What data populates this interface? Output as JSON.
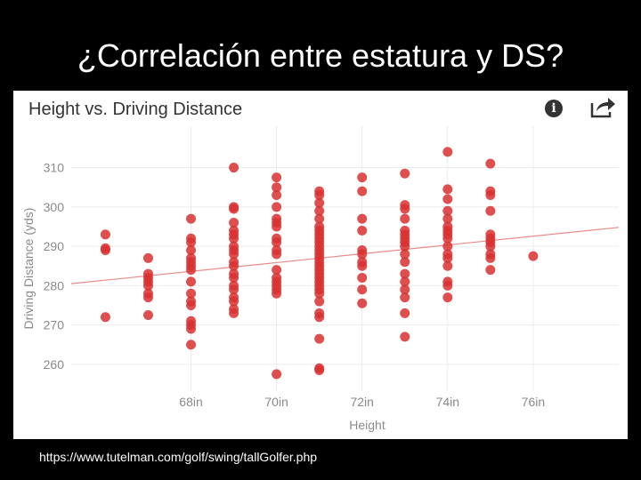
{
  "slide": {
    "title": "¿Correlación entre estatura y DS?",
    "source_url": "https://www.tutelman.com/golf/swing/tallGolfer.php"
  },
  "chart_header": {
    "icons": [
      "info-icon",
      "share-icon"
    ]
  },
  "colors": {
    "point": "#d93030",
    "trend": "#e88a8a",
    "grid": "#ececec",
    "axis_text": "#8a8a8a"
  },
  "chart_data": {
    "type": "scatter",
    "title": "Height vs. Driving Distance",
    "xlabel": "Height",
    "ylabel": "Driving Distance (yds)",
    "xlim": [
      65.2,
      78.0
    ],
    "ylim": [
      255,
      316
    ],
    "x_ticks": [
      68,
      70,
      72,
      74,
      76
    ],
    "x_tick_labels": [
      "68in",
      "70in",
      "72in",
      "74in",
      "76in"
    ],
    "y_ticks": [
      260,
      270,
      280,
      290,
      300,
      310
    ],
    "y_tick_labels": [
      "260",
      "270",
      "280",
      "290",
      "300",
      "310"
    ],
    "grid": true,
    "trendline": {
      "x": [
        65.2,
        78.0
      ],
      "y": [
        280.5,
        294.8
      ]
    },
    "points": [
      {
        "x": 66,
        "y": 293
      },
      {
        "x": 66,
        "y": 289.5
      },
      {
        "x": 66,
        "y": 289
      },
      {
        "x": 66,
        "y": 272
      },
      {
        "x": 67,
        "y": 287
      },
      {
        "x": 67,
        "y": 283
      },
      {
        "x": 67,
        "y": 282
      },
      {
        "x": 67,
        "y": 281
      },
      {
        "x": 67,
        "y": 280
      },
      {
        "x": 67,
        "y": 278
      },
      {
        "x": 67,
        "y": 277
      },
      {
        "x": 67,
        "y": 272.5
      },
      {
        "x": 68,
        "y": 297
      },
      {
        "x": 68,
        "y": 292
      },
      {
        "x": 68,
        "y": 291
      },
      {
        "x": 68,
        "y": 289
      },
      {
        "x": 68,
        "y": 287
      },
      {
        "x": 68,
        "y": 286
      },
      {
        "x": 68,
        "y": 285
      },
      {
        "x": 68,
        "y": 284
      },
      {
        "x": 68,
        "y": 281
      },
      {
        "x": 68,
        "y": 278
      },
      {
        "x": 68,
        "y": 276
      },
      {
        "x": 68,
        "y": 275
      },
      {
        "x": 68,
        "y": 271
      },
      {
        "x": 68,
        "y": 270
      },
      {
        "x": 68,
        "y": 269
      },
      {
        "x": 68,
        "y": 265
      },
      {
        "x": 69,
        "y": 310
      },
      {
        "x": 69,
        "y": 300
      },
      {
        "x": 69,
        "y": 299.5
      },
      {
        "x": 69,
        "y": 296
      },
      {
        "x": 69,
        "y": 294
      },
      {
        "x": 69,
        "y": 293
      },
      {
        "x": 69,
        "y": 292
      },
      {
        "x": 69,
        "y": 290
      },
      {
        "x": 69,
        "y": 289
      },
      {
        "x": 69,
        "y": 288
      },
      {
        "x": 69,
        "y": 286
      },
      {
        "x": 69,
        "y": 285
      },
      {
        "x": 69,
        "y": 283
      },
      {
        "x": 69,
        "y": 282
      },
      {
        "x": 69,
        "y": 280
      },
      {
        "x": 69,
        "y": 279
      },
      {
        "x": 69,
        "y": 277
      },
      {
        "x": 69,
        "y": 276
      },
      {
        "x": 69,
        "y": 274
      },
      {
        "x": 69,
        "y": 273
      },
      {
        "x": 70,
        "y": 307.5
      },
      {
        "x": 70,
        "y": 305
      },
      {
        "x": 70,
        "y": 303
      },
      {
        "x": 70,
        "y": 300
      },
      {
        "x": 70,
        "y": 297
      },
      {
        "x": 70,
        "y": 296
      },
      {
        "x": 70,
        "y": 295
      },
      {
        "x": 70,
        "y": 292
      },
      {
        "x": 70,
        "y": 291
      },
      {
        "x": 70,
        "y": 289
      },
      {
        "x": 70,
        "y": 288
      },
      {
        "x": 70,
        "y": 284
      },
      {
        "x": 70,
        "y": 282
      },
      {
        "x": 70,
        "y": 281
      },
      {
        "x": 70,
        "y": 280
      },
      {
        "x": 70,
        "y": 279
      },
      {
        "x": 70,
        "y": 278
      },
      {
        "x": 70,
        "y": 257.5
      },
      {
        "x": 71,
        "y": 304
      },
      {
        "x": 71,
        "y": 303
      },
      {
        "x": 71,
        "y": 301
      },
      {
        "x": 71,
        "y": 299
      },
      {
        "x": 71,
        "y": 297
      },
      {
        "x": 71,
        "y": 295
      },
      {
        "x": 71,
        "y": 294
      },
      {
        "x": 71,
        "y": 293
      },
      {
        "x": 71,
        "y": 292
      },
      {
        "x": 71,
        "y": 291
      },
      {
        "x": 71,
        "y": 290
      },
      {
        "x": 71,
        "y": 289
      },
      {
        "x": 71,
        "y": 288
      },
      {
        "x": 71,
        "y": 287
      },
      {
        "x": 71,
        "y": 286
      },
      {
        "x": 71,
        "y": 285
      },
      {
        "x": 71,
        "y": 284
      },
      {
        "x": 71,
        "y": 283
      },
      {
        "x": 71,
        "y": 282
      },
      {
        "x": 71,
        "y": 281
      },
      {
        "x": 71,
        "y": 280
      },
      {
        "x": 71,
        "y": 279
      },
      {
        "x": 71,
        "y": 278
      },
      {
        "x": 71,
        "y": 276
      },
      {
        "x": 71,
        "y": 273
      },
      {
        "x": 71,
        "y": 272
      },
      {
        "x": 71,
        "y": 266.5
      },
      {
        "x": 71,
        "y": 259
      },
      {
        "x": 71,
        "y": 258.5
      },
      {
        "x": 72,
        "y": 307.5
      },
      {
        "x": 72,
        "y": 304
      },
      {
        "x": 72,
        "y": 297
      },
      {
        "x": 72,
        "y": 294
      },
      {
        "x": 72,
        "y": 289
      },
      {
        "x": 72,
        "y": 288
      },
      {
        "x": 72,
        "y": 286
      },
      {
        "x": 72,
        "y": 285
      },
      {
        "x": 72,
        "y": 282
      },
      {
        "x": 72,
        "y": 279
      },
      {
        "x": 72,
        "y": 275.5
      },
      {
        "x": 73,
        "y": 308.5
      },
      {
        "x": 73,
        "y": 300.5
      },
      {
        "x": 73,
        "y": 299.5
      },
      {
        "x": 73,
        "y": 297
      },
      {
        "x": 73,
        "y": 294
      },
      {
        "x": 73,
        "y": 293
      },
      {
        "x": 73,
        "y": 292
      },
      {
        "x": 73,
        "y": 291
      },
      {
        "x": 73,
        "y": 290
      },
      {
        "x": 73,
        "y": 288
      },
      {
        "x": 73,
        "y": 286
      },
      {
        "x": 73,
        "y": 283
      },
      {
        "x": 73,
        "y": 281
      },
      {
        "x": 73,
        "y": 279
      },
      {
        "x": 73,
        "y": 277
      },
      {
        "x": 73,
        "y": 273
      },
      {
        "x": 73,
        "y": 267
      },
      {
        "x": 74,
        "y": 314
      },
      {
        "x": 74,
        "y": 304.5
      },
      {
        "x": 74,
        "y": 302
      },
      {
        "x": 74,
        "y": 299
      },
      {
        "x": 74,
        "y": 297
      },
      {
        "x": 74,
        "y": 295
      },
      {
        "x": 74,
        "y": 294
      },
      {
        "x": 74,
        "y": 293
      },
      {
        "x": 74,
        "y": 292
      },
      {
        "x": 74,
        "y": 290
      },
      {
        "x": 74,
        "y": 288
      },
      {
        "x": 74,
        "y": 287
      },
      {
        "x": 74,
        "y": 285
      },
      {
        "x": 74,
        "y": 281
      },
      {
        "x": 74,
        "y": 280
      },
      {
        "x": 74,
        "y": 277
      },
      {
        "x": 75,
        "y": 311
      },
      {
        "x": 75,
        "y": 304
      },
      {
        "x": 75,
        "y": 303
      },
      {
        "x": 75,
        "y": 299
      },
      {
        "x": 75,
        "y": 293
      },
      {
        "x": 75,
        "y": 292
      },
      {
        "x": 75,
        "y": 291
      },
      {
        "x": 75,
        "y": 290
      },
      {
        "x": 75,
        "y": 288
      },
      {
        "x": 75,
        "y": 287
      },
      {
        "x": 75,
        "y": 284
      },
      {
        "x": 76,
        "y": 287.5
      }
    ]
  }
}
